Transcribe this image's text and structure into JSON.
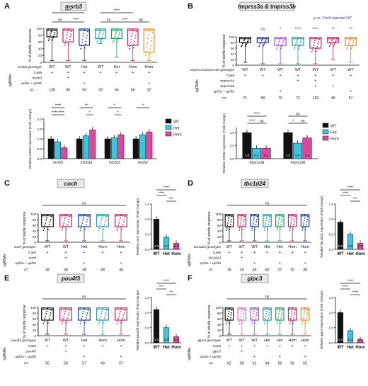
{
  "colors": {
    "wt": "#111111",
    "het": "#3ec3e0",
    "hom": "#e0469e",
    "navy": "#1f3a93",
    "crimson": "#c0215e",
    "teal": "#1b9aa0",
    "green": "#18a05a",
    "orange": "#e58a1c",
    "pink": "#e06fb0",
    "purple": "#a24dd0",
    "titlebox": "#e8e8e8",
    "blue": "#2a3ec9"
  },
  "panels": {
    "A": {
      "letter": "A",
      "title": "msrb3",
      "ylabel": "% of startle response",
      "yticks": [
        "0",
        "20",
        "40",
        "60",
        "80",
        "100"
      ],
      "genotype_label": "msrb3 genotype",
      "genotype": [
        "WT",
        "WT",
        "Het",
        "WT",
        "Het",
        "Hom",
        "Hom"
      ],
      "sgRNAs_label": "sgRNAs",
      "rows": [
        {
          "label": "Cas9",
          "v": [
            "+",
            "+",
            "+",
            "+",
            "+",
            "+",
            "+"
          ]
        },
        {
          "label": "msrb3",
          "v": [
            "",
            "+",
            "",
            "",
            "",
            "",
            ""
          ]
        },
        {
          "label": "upf3a + upf3b",
          "v": [
            "",
            "",
            "+",
            "",
            "",
            "",
            "+"
          ]
        }
      ],
      "n_label": "n=",
      "n": [
        "138",
        "96",
        "94",
        "33",
        "65",
        "66",
        "32"
      ],
      "sig": [
        "****",
        "****",
        "ns",
        "ns",
        "****",
        "****",
        "ns"
      ],
      "qpcr": {
        "ylabel": "Relative mRNA expression (Fold change)",
        "yticks": [
          "0.0",
          "0.5",
          "1.0",
          "1.5",
          "2.0"
        ],
        "genes": [
          "msrb3",
          "msrb1a",
          "msrb1b",
          "msrb2"
        ],
        "sig": [
          "****",
          "****",
          "****",
          "****",
          "**",
          "*",
          "*",
          "*",
          "*"
        ]
      },
      "legend": [
        "WT",
        "Het",
        "Hom"
      ]
    },
    "B": {
      "letter": "B",
      "title": "tmprss3a & tmprss3b",
      "note": "p vs. Cas9-injected WT",
      "ylabel": "% of startle response",
      "yticks": [
        "0",
        "20",
        "40",
        "60",
        "80",
        "100"
      ],
      "genotype_label": "tmprss3a;tmprss3b genotype",
      "genotype": [
        "WT",
        "WT",
        "WT",
        "WT",
        "WT",
        "WT",
        "WT"
      ],
      "sgRNAs_label": "sgRNAs",
      "rows": [
        {
          "label": "Cas9",
          "v": [
            "+",
            "+",
            "+",
            "+",
            "+",
            "+",
            "+"
          ]
        },
        {
          "label": "tmprss3a",
          "v": [
            "",
            "",
            "",
            "+",
            "+",
            "",
            ""
          ]
        },
        {
          "label": "tmprss3b",
          "v": [
            "",
            "",
            "",
            "",
            "+",
            "+",
            ""
          ]
        },
        {
          "label": "upf3a + upf3b",
          "v": [
            "",
            "",
            "+",
            "",
            "",
            "",
            "+"
          ]
        }
      ],
      "n_label": "n=",
      "n": [
        "71",
        "58",
        "70",
        "72",
        "139",
        "49",
        "57"
      ],
      "sig": [
        "ns",
        "*",
        "****",
        "****",
        "**",
        "**"
      ],
      "qpcr": {
        "ylabel": "Relative mRNA expression (Fold change)",
        "yticks": [
          "0.0",
          "0.5",
          "1.0"
        ],
        "genes": [
          "tmprss3a",
          "tmprss3b"
        ],
        "bar_labels": [
          "1.0",
          "0.4",
          "0.4",
          "1.0",
          "0.6",
          "0.8"
        ],
        "sig": [
          "****",
          "****",
          "ns",
          "ns",
          "*",
          "ns"
        ]
      },
      "legend": [
        "WT",
        "Het",
        "Hom"
      ]
    },
    "C": {
      "letter": "C",
      "title": "coch",
      "ylabel": "% of startle response",
      "yticks": [
        "0",
        "20",
        "40",
        "60",
        "80",
        "100"
      ],
      "genotype_label": "coch genotype",
      "genotype": [
        "WT",
        "WT",
        "Het",
        "Hom",
        "Hom"
      ],
      "sgRNAs_label": "sgRNAs",
      "rows": [
        {
          "label": "Cas9",
          "v": [
            "+",
            "+",
            "+",
            "+",
            "+"
          ]
        },
        {
          "label": "coch",
          "v": [
            "",
            "+",
            "",
            "",
            ""
          ]
        },
        {
          "label": "upf3a + upf3b",
          "v": [
            "",
            "",
            "+",
            "",
            "+"
          ]
        }
      ],
      "n_label": "n=",
      "n": [
        "48",
        "48",
        "48",
        "48",
        "48"
      ],
      "sig": [
        "ns"
      ],
      "qpcr": {
        "ylabel": "Relative coch expression (Fold change)",
        "yticks": [
          "0.0",
          "0.5",
          "1.0",
          "1.5"
        ],
        "cats": [
          "WT",
          "Het",
          "Hom"
        ],
        "bar_labels": [
          "1.0",
          "0.4",
          "0.2"
        ],
        "sig": [
          "****",
          "****",
          "***"
        ]
      }
    },
    "D": {
      "letter": "D",
      "title": "tbc1d24",
      "ylabel": "% of startle response",
      "yticks": [
        "0",
        "20",
        "40",
        "60",
        "80",
        "100"
      ],
      "genotype_label": "tbc1d24 genotype",
      "genotype": [
        "WT",
        "WT",
        "WT",
        "Het",
        "Het",
        "Hom",
        "Hom"
      ],
      "sgRNAs_label": "sgRNAs",
      "rows": [
        {
          "label": "Cas9",
          "v": [
            "+",
            "+",
            "+",
            "+",
            "+",
            "+",
            "+"
          ]
        },
        {
          "label": "tbc1d24",
          "v": [
            "",
            "+",
            "",
            "",
            "",
            "",
            ""
          ]
        },
        {
          "label": "upf3a + upf3b",
          "v": [
            "",
            "",
            "+",
            "",
            "+",
            "",
            "+"
          ]
        }
      ],
      "n_label": "n=",
      "n": [
        "28",
        "33",
        "48",
        "50",
        "27",
        "30",
        "38"
      ],
      "sig": [
        "ns"
      ],
      "qpcr": {
        "ylabel": "Relative tbc1d24 expression (Fold change)",
        "yticks": [
          "0.0",
          "0.5",
          "1.0",
          "1.5"
        ],
        "cats": [
          "WT",
          "Het",
          "Hom"
        ],
        "bar_labels": [
          "0.9",
          "0.5",
          "0.2"
        ],
        "sig": [
          "****",
          "****",
          "***"
        ]
      }
    },
    "E": {
      "letter": "E",
      "title": "pou4f3",
      "ylabel": "% of startle response",
      "yticks": [
        "0",
        "20",
        "40",
        "60",
        "80",
        "100"
      ],
      "genotype_label": "pou4f3 genotype",
      "genotype": [
        "WT",
        "WT",
        "Het",
        "Hom",
        "Hom"
      ],
      "sgRNAs_label": "sgRNAs",
      "rows": [
        {
          "label": "Cas9",
          "v": [
            "+",
            "+",
            "+",
            "+",
            "+"
          ]
        },
        {
          "label": "pou4f3",
          "v": [
            "",
            "+",
            "",
            "",
            ""
          ]
        },
        {
          "label": "upf3a + upf3b",
          "v": [
            "",
            "",
            "+",
            "",
            "+"
          ]
        }
      ],
      "n_label": "n=",
      "n": [
        "56",
        "58",
        "57",
        "49",
        "57"
      ],
      "sig": [
        "ns"
      ],
      "qpcr": {
        "ylabel": "Relative pou4f3 expression (Fold change)",
        "yticks": [
          "0.0",
          "0.5",
          "1.0",
          "1.5"
        ],
        "cats": [
          "WT",
          "Het",
          "Hom"
        ],
        "bar_labels": [
          "1.1",
          "0.5",
          "0.2"
        ],
        "sig": [
          "****",
          "***",
          "**"
        ]
      }
    },
    "F": {
      "letter": "F",
      "title": "gipc3",
      "ylabel": "% of startle response",
      "yticks": [
        "0",
        "20",
        "40",
        "60",
        "80",
        "100"
      ],
      "genotype_label": "gipc3 genotype",
      "genotype": [
        "WT",
        "WT",
        "WT",
        "Het",
        "Het",
        "Hom",
        "Hom"
      ],
      "sgRNAs_label": "sgRNAs",
      "rows": [
        {
          "label": "Cas9",
          "v": [
            "+",
            "+",
            "+",
            "+",
            "+",
            "+",
            "+"
          ]
        },
        {
          "label": "gipc3",
          "v": [
            "",
            "+",
            "",
            "",
            "",
            "",
            ""
          ]
        },
        {
          "label": "upf3a + upf3b",
          "v": [
            "",
            "",
            "+",
            "",
            "+",
            "",
            "+"
          ]
        }
      ],
      "n_label": "n=",
      "n": [
        "62",
        "59",
        "61",
        "64",
        "56",
        "56",
        "62"
      ],
      "sig": [
        "ns"
      ],
      "qpcr": {
        "ylabel": "Relative gipc3 expression (Fold change)",
        "yticks": [
          "0.0",
          "0.5",
          "1.0",
          "1.5"
        ],
        "cats": [
          "WT",
          "Het",
          "Hom"
        ],
        "bar_labels": [
          "1.0",
          "0.4",
          "0.1"
        ],
        "sig": [
          "****",
          "****",
          "****"
        ]
      }
    }
  },
  "chart_data": [
    {
      "type": "bar",
      "panel": "A",
      "categories": [
        "msrb3",
        "msrb1a",
        "msrb1b",
        "msrb2"
      ],
      "series": [
        {
          "name": "WT",
          "values": [
            1.0,
            1.0,
            1.0,
            1.0
          ]
        },
        {
          "name": "Het",
          "values": [
            0.85,
            1.15,
            1.05,
            1.2
          ]
        },
        {
          "name": "Hom",
          "values": [
            0.55,
            1.45,
            1.2,
            1.35
          ]
        }
      ],
      "ylabel": "Relative mRNA expression (Fold change)",
      "ylim": [
        0,
        2
      ]
    },
    {
      "type": "bar",
      "panel": "B",
      "categories": [
        "tmprss3a",
        "tmprss3b"
      ],
      "series": [
        {
          "name": "WT",
          "values": [
            1.0,
            1.0
          ]
        },
        {
          "name": "Het",
          "values": [
            0.4,
            0.6
          ]
        },
        {
          "name": "Hom",
          "values": [
            0.4,
            0.8
          ]
        }
      ],
      "ylabel": "Relative mRNA expression (Fold change)",
      "ylim": [
        0,
        1.2
      ]
    },
    {
      "type": "bar",
      "panel": "C",
      "categories": [
        "WT",
        "Het",
        "Hom"
      ],
      "values": [
        1.0,
        0.4,
        0.2
      ],
      "ylabel": "Relative coch expression (Fold change)",
      "ylim": [
        0,
        1.5
      ]
    },
    {
      "type": "bar",
      "panel": "D",
      "categories": [
        "WT",
        "Het",
        "Hom"
      ],
      "values": [
        0.9,
        0.5,
        0.2
      ],
      "ylabel": "Relative tbc1d24 expression (Fold change)",
      "ylim": [
        0,
        1.5
      ]
    },
    {
      "type": "bar",
      "panel": "E",
      "categories": [
        "WT",
        "Het",
        "Hom"
      ],
      "values": [
        1.1,
        0.5,
        0.2
      ],
      "ylabel": "Relative pou4f3 expression (Fold change)",
      "ylim": [
        0,
        1.5
      ]
    },
    {
      "type": "bar",
      "panel": "F",
      "categories": [
        "WT",
        "Het",
        "Hom"
      ],
      "values": [
        1.0,
        0.4,
        0.1
      ],
      "ylabel": "Relative gipc3 expression (Fold change)",
      "ylim": [
        0,
        1.5
      ]
    }
  ]
}
